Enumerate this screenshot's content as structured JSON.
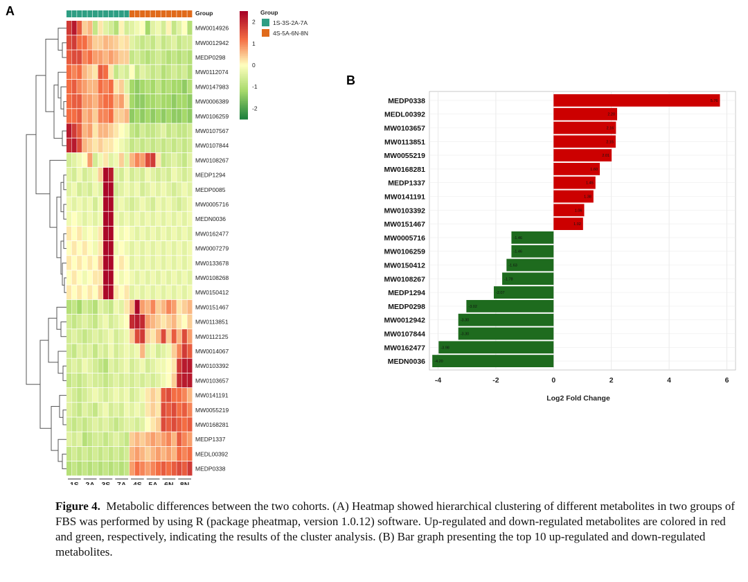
{
  "panel_a_label": "A",
  "panel_b_label": "B",
  "caption": {
    "label": "Figure 4.",
    "text": "Metabolic differences between the two cohorts. (A) Heatmap showed hierarchical clustering of different metabolites in two groups of FBS was performed by using R (package pheatmap, version 1.0.12) software. Up-regulated and down-regulated metabolites are colored in red and green, respectively, indicating the results of the cluster analysis. (B) Bar graph presenting the top 10 up-regulated and down-regulated metabolites."
  },
  "chart_data": [
    {
      "type": "heatmap",
      "annotation_row_label": "Group",
      "legend": {
        "title": "Group",
        "entries": [
          {
            "label": "1S-3S-2A-7A",
            "color": "#2e9e83"
          },
          {
            "label": "4S-5A-6N-8N",
            "color": "#e06a1b"
          }
        ]
      },
      "colorbar": {
        "ticks": [
          2,
          1,
          0,
          -1,
          -2
        ],
        "high_color": "#a50026",
        "mid_color": "#ffffbf",
        "low_color": "#1a7f3c"
      },
      "groups": [
        "1S",
        "2A",
        "3S",
        "7A",
        "4S",
        "5A",
        "6N",
        "8N"
      ],
      "columns_per_group": 3,
      "group_membership": [
        "1S-3S-2A-7A",
        "1S-3S-2A-7A",
        "1S-3S-2A-7A",
        "1S-3S-2A-7A",
        "4S-5A-6N-8N",
        "4S-5A-6N-8N",
        "4S-5A-6N-8N",
        "4S-5A-6N-8N"
      ],
      "rows": [
        {
          "name": "MW0014926",
          "values": [
            1.8,
            2.2,
            1.4,
            0.4,
            0.6,
            -0.8,
            0.2,
            -0.4,
            -0.6,
            -1.0,
            0.1,
            -0.6,
            -0.4,
            -0.2,
            0.0,
            -1.2,
            -0.4,
            -0.2,
            -0.6,
            0.1,
            -0.8,
            -0.4,
            0.0,
            -1.0
          ]
        },
        {
          "name": "MW0012942",
          "values": [
            1.6,
            1.8,
            1.2,
            1.2,
            0.8,
            0.4,
            0.4,
            0.6,
            0.5,
            0.4,
            0.2,
            0.3,
            -0.4,
            -0.6,
            -0.8,
            -0.6,
            -0.8,
            -0.4,
            -0.8,
            -0.6,
            -0.4,
            -0.8,
            -0.6,
            -0.6
          ]
        },
        {
          "name": "MEDP0298",
          "values": [
            1.4,
            1.6,
            1.6,
            1.0,
            1.2,
            0.8,
            0.8,
            0.6,
            0.8,
            0.6,
            0.4,
            0.4,
            -0.8,
            -0.6,
            -0.8,
            -1.0,
            -0.8,
            -0.6,
            -0.8,
            -1.0,
            -0.8,
            -1.0,
            -0.8,
            -1.0
          ]
        },
        {
          "name": "MW0112074",
          "values": [
            1.2,
            1.0,
            1.2,
            0.6,
            0.4,
            0.2,
            1.4,
            1.2,
            0.2,
            -0.8,
            -0.4,
            -0.6,
            0.0,
            -0.8,
            -0.4,
            -0.6,
            -0.8,
            -0.6,
            -1.0,
            -0.8,
            -0.6,
            -0.8,
            -0.6,
            -1.0
          ]
        },
        {
          "name": "MW0147983",
          "values": [
            1.2,
            1.4,
            1.0,
            0.8,
            0.6,
            0.6,
            1.2,
            1.0,
            1.2,
            0.2,
            0.4,
            -0.4,
            -1.2,
            -1.4,
            -1.2,
            -1.0,
            -1.2,
            -0.8,
            -1.2,
            -1.0,
            -1.2,
            -1.2,
            -1.4,
            -1.0
          ]
        },
        {
          "name": "MW0006389",
          "values": [
            1.2,
            1.4,
            1.4,
            0.8,
            0.8,
            0.6,
            1.0,
            1.2,
            1.2,
            0.6,
            0.8,
            0.2,
            -1.2,
            -1.4,
            -1.4,
            -1.2,
            -1.2,
            -1.0,
            -1.2,
            -1.2,
            -1.4,
            -1.2,
            -1.2,
            -1.4
          ]
        },
        {
          "name": "MW0106259",
          "values": [
            1.2,
            1.2,
            1.4,
            0.6,
            0.8,
            0.4,
            1.0,
            1.0,
            1.2,
            0.4,
            0.4,
            0.6,
            -1.4,
            -1.2,
            -1.4,
            -1.2,
            -1.4,
            -1.2,
            -1.4,
            -1.2,
            -1.4,
            -1.4,
            -1.2,
            -1.4
          ]
        },
        {
          "name": "MW0107567",
          "values": [
            2.2,
            1.8,
            1.4,
            0.6,
            0.8,
            0.2,
            0.6,
            0.6,
            0.4,
            0.2,
            0.0,
            -0.2,
            -0.8,
            -1.0,
            -0.6,
            -0.8,
            -0.8,
            -0.6,
            -0.4,
            -0.8,
            -0.6,
            -0.8,
            -0.8,
            -0.6
          ]
        },
        {
          "name": "MW0107844",
          "values": [
            2.0,
            2.2,
            1.6,
            0.6,
            0.4,
            0.2,
            0.4,
            0.2,
            0.2,
            0.0,
            -0.2,
            -0.4,
            -0.8,
            -0.6,
            -0.8,
            -0.6,
            -0.8,
            -0.6,
            -0.8,
            -0.6,
            -0.8,
            -0.6,
            -0.8,
            -0.6
          ]
        },
        {
          "name": "MW0108267",
          "values": [
            -0.6,
            -0.4,
            -0.2,
            0.0,
            0.8,
            -0.6,
            -0.2,
            0.2,
            -0.4,
            -0.2,
            0.4,
            -0.4,
            0.6,
            1.0,
            0.8,
            1.6,
            1.8,
            0.2,
            -0.8,
            -0.6,
            -0.4,
            -0.6,
            -0.8,
            -0.4
          ]
        },
        {
          "name": "MEDP1294",
          "values": [
            -0.4,
            -0.6,
            -0.2,
            -0.6,
            -0.4,
            -0.2,
            0.4,
            2.4,
            2.2,
            -0.4,
            -0.6,
            -0.2,
            -0.6,
            -0.4,
            -0.6,
            -0.2,
            -0.4,
            -0.6,
            -0.4,
            -0.6,
            -0.2,
            -0.4,
            -0.6,
            -0.4
          ]
        },
        {
          "name": "MEDP0085",
          "values": [
            -0.4,
            -0.2,
            -0.6,
            -0.4,
            -0.6,
            -0.2,
            -0.4,
            2.4,
            2.4,
            -0.6,
            -0.4,
            -0.2,
            -0.4,
            -0.2,
            -0.6,
            -0.4,
            -0.2,
            -0.4,
            -0.2,
            -0.4,
            -0.6,
            -0.4,
            -0.2,
            -0.4
          ]
        },
        {
          "name": "MW0005716",
          "values": [
            -0.2,
            -0.4,
            -0.2,
            -0.4,
            -0.2,
            -0.6,
            -0.2,
            2.4,
            2.4,
            -0.4,
            -0.2,
            -0.4,
            -0.6,
            -0.4,
            -0.2,
            -0.4,
            -0.6,
            -0.2,
            -0.4,
            -0.2,
            -0.4,
            -0.6,
            -0.4,
            -0.2
          ]
        },
        {
          "name": "MEDN0036",
          "values": [
            -0.2,
            0.0,
            -0.2,
            -0.4,
            -0.2,
            -0.4,
            -0.2,
            2.4,
            2.4,
            -0.2,
            -0.4,
            -0.2,
            -0.4,
            -0.2,
            -0.4,
            -0.2,
            -0.4,
            -0.2,
            -0.4,
            -0.2,
            -0.4,
            -0.2,
            -0.4,
            -0.2
          ]
        },
        {
          "name": "MW0162477",
          "values": [
            0.2,
            0.0,
            0.2,
            -0.2,
            0.0,
            -0.2,
            0.2,
            2.4,
            2.4,
            0.0,
            -0.2,
            0.0,
            -0.2,
            -0.4,
            -0.2,
            -0.4,
            -0.2,
            -0.4,
            -0.2,
            -0.4,
            -0.2,
            -0.4,
            -0.2,
            -0.4
          ]
        },
        {
          "name": "MW0007279",
          "values": [
            0.0,
            0.2,
            0.0,
            0.2,
            0.0,
            -0.2,
            0.2,
            2.4,
            2.4,
            -0.2,
            0.0,
            -0.2,
            -0.4,
            -0.2,
            -0.4,
            -0.2,
            -0.4,
            -0.2,
            -0.4,
            -0.2,
            -0.4,
            -0.2,
            -0.4,
            -0.2
          ]
        },
        {
          "name": "MW0133678",
          "values": [
            0.2,
            0.0,
            0.2,
            0.0,
            0.2,
            0.0,
            0.4,
            2.4,
            2.4,
            0.0,
            0.2,
            0.0,
            -0.4,
            -0.2,
            -0.4,
            -0.2,
            -0.4,
            -0.2,
            -0.4,
            -0.2,
            -0.4,
            -0.2,
            -0.4,
            -0.2
          ]
        },
        {
          "name": "MW0108268",
          "values": [
            0.0,
            0.2,
            0.0,
            -0.2,
            0.0,
            0.2,
            0.2,
            2.4,
            2.4,
            0.0,
            -0.2,
            0.0,
            -0.2,
            -0.4,
            -0.2,
            -0.4,
            -0.2,
            -0.4,
            -0.2,
            -0.4,
            -0.2,
            -0.4,
            -0.2,
            -0.4
          ]
        },
        {
          "name": "MW0150412",
          "values": [
            0.2,
            0.0,
            0.2,
            0.0,
            0.2,
            0.0,
            0.4,
            2.4,
            2.4,
            0.2,
            0.0,
            0.2,
            -0.4,
            -0.2,
            -0.4,
            -0.2,
            -0.4,
            -0.2,
            -0.4,
            -0.2,
            -0.4,
            -0.2,
            -0.4,
            -0.2
          ]
        },
        {
          "name": "MW0151467",
          "values": [
            -1.0,
            -0.8,
            -1.2,
            -0.6,
            -0.8,
            -1.0,
            -0.4,
            -0.6,
            -0.8,
            -0.2,
            -0.4,
            0.2,
            0.6,
            2.4,
            0.8,
            0.6,
            1.0,
            0.4,
            0.6,
            1.0,
            0.8,
            0.2,
            0.4,
            0.6
          ]
        },
        {
          "name": "MW0113851",
          "values": [
            -0.6,
            -0.8,
            -0.6,
            -0.4,
            -0.6,
            -0.8,
            -0.4,
            -0.2,
            -0.6,
            -0.4,
            -0.2,
            0.0,
            2.0,
            2.2,
            2.0,
            0.8,
            0.6,
            0.4,
            0.2,
            0.4,
            0.6,
            0.2,
            0.0,
            0.4
          ]
        },
        {
          "name": "MW0112125",
          "values": [
            -0.6,
            -0.4,
            -0.6,
            -0.8,
            -0.6,
            -0.4,
            -0.6,
            -0.4,
            -0.2,
            -0.6,
            -0.4,
            -0.2,
            0.4,
            1.6,
            1.8,
            0.4,
            0.2,
            0.6,
            1.6,
            0.4,
            1.4,
            0.6,
            1.6,
            0.8
          ]
        },
        {
          "name": "MW0014067",
          "values": [
            -0.6,
            -0.8,
            -0.4,
            -0.6,
            -0.4,
            -0.8,
            -0.4,
            -0.6,
            -0.2,
            -0.6,
            -0.4,
            -0.2,
            -0.4,
            -0.2,
            0.6,
            -0.4,
            -0.2,
            -0.6,
            -0.4,
            -0.2,
            0.4,
            1.0,
            1.8,
            1.4
          ]
        },
        {
          "name": "MW0103392",
          "values": [
            -0.6,
            -0.4,
            -0.6,
            -0.2,
            -0.4,
            -0.6,
            -0.8,
            -1.0,
            -0.4,
            -0.6,
            -0.4,
            -0.2,
            -0.6,
            -0.4,
            -0.2,
            -0.6,
            -0.4,
            -0.2,
            -0.2,
            0.0,
            0.2,
            1.8,
            2.2,
            2.2
          ]
        },
        {
          "name": "MW0103657",
          "values": [
            -0.8,
            -0.6,
            -0.8,
            -0.6,
            -0.4,
            -0.6,
            -0.6,
            -0.8,
            -0.6,
            -0.4,
            -0.6,
            -0.4,
            -0.6,
            -0.4,
            -0.6,
            -0.4,
            -0.6,
            -0.4,
            -0.2,
            0.0,
            0.4,
            2.0,
            2.2,
            2.2
          ]
        },
        {
          "name": "MW0141191",
          "values": [
            -0.4,
            -0.6,
            -0.8,
            -0.6,
            -0.4,
            -0.2,
            -0.4,
            -0.6,
            -0.4,
            -0.2,
            -0.4,
            -0.2,
            -0.6,
            -0.4,
            -0.2,
            0.2,
            0.4,
            0.2,
            1.4,
            1.6,
            1.2,
            1.2,
            1.0,
            0.6
          ]
        },
        {
          "name": "MW0055219",
          "values": [
            -0.4,
            -0.6,
            -0.8,
            -0.4,
            -0.6,
            -0.8,
            -0.4,
            -0.2,
            -0.6,
            -0.4,
            -0.6,
            -0.2,
            -0.4,
            -0.2,
            -0.4,
            0.2,
            0.4,
            0.2,
            1.6,
            1.4,
            1.6,
            1.2,
            1.4,
            1.0
          ]
        },
        {
          "name": "MW0168281",
          "values": [
            -0.6,
            -0.8,
            -0.6,
            -0.8,
            -0.6,
            -0.4,
            -0.6,
            -0.4,
            -0.6,
            -0.8,
            -0.6,
            -0.4,
            -0.4,
            -0.6,
            -0.4,
            0.0,
            0.2,
            0.4,
            1.6,
            1.4,
            1.6,
            1.4,
            1.2,
            1.4
          ]
        },
        {
          "name": "MEDP1337",
          "values": [
            -0.4,
            -0.6,
            -0.4,
            -1.0,
            -0.8,
            -0.6,
            -0.6,
            -0.8,
            -0.6,
            -0.4,
            -0.6,
            -0.8,
            0.4,
            0.6,
            0.4,
            0.6,
            0.8,
            0.6,
            0.8,
            1.0,
            0.6,
            1.4,
            1.0,
            0.8
          ]
        },
        {
          "name": "MEDL00392",
          "values": [
            -0.8,
            -0.6,
            -0.8,
            -0.6,
            -0.8,
            -0.6,
            -0.8,
            -0.6,
            -0.8,
            -0.6,
            -0.8,
            -0.6,
            0.6,
            0.8,
            0.6,
            0.4,
            0.6,
            0.8,
            0.6,
            0.8,
            0.6,
            1.2,
            1.0,
            1.2
          ]
        },
        {
          "name": "MEDP0338",
          "values": [
            -1.0,
            -0.8,
            -1.0,
            -0.8,
            -1.0,
            -0.8,
            -1.0,
            -0.8,
            -1.0,
            -0.8,
            -1.0,
            -0.8,
            0.8,
            1.2,
            1.0,
            0.8,
            1.0,
            1.2,
            1.4,
            1.2,
            1.4,
            1.6,
            1.4,
            1.8
          ]
        }
      ]
    },
    {
      "type": "bar",
      "orientation": "horizontal",
      "xlabel": "Log2 Fold Change",
      "xlim": [
        -4.3,
        6.3
      ],
      "xticks": [
        -4,
        -2,
        0,
        2,
        4,
        6
      ],
      "grid": true,
      "colors": {
        "up": "#cc0000",
        "down": "#1e6b1e"
      },
      "bars": [
        {
          "name": "MEDP0338",
          "value": 5.76,
          "label": "5.76"
        },
        {
          "name": "MEDL00392",
          "value": 2.2,
          "label": "2.20"
        },
        {
          "name": "MW0103657",
          "value": 2.16,
          "label": "2.16"
        },
        {
          "name": "MW0113851",
          "value": 2.15,
          "label": "2.15"
        },
        {
          "name": "MW0055219",
          "value": 2.01,
          "label": "2.01"
        },
        {
          "name": "MW0168281",
          "value": 1.6,
          "label": "1.60"
        },
        {
          "name": "MEDP1337",
          "value": 1.45,
          "label": "1.45"
        },
        {
          "name": "MW0141191",
          "value": 1.38,
          "label": "1.38"
        },
        {
          "name": "MW0103392",
          "value": 1.06,
          "label": "1.06"
        },
        {
          "name": "MW0151467",
          "value": 1.02,
          "label": "1.02"
        },
        {
          "name": "MW0005716",
          "value": -1.46,
          "label": "-1.46"
        },
        {
          "name": "MW0106259",
          "value": -1.46,
          "label": "-1.46"
        },
        {
          "name": "MW0150412",
          "value": -1.63,
          "label": "-1.63"
        },
        {
          "name": "MW0108267",
          "value": -1.78,
          "label": "-1.78"
        },
        {
          "name": "MEDP1294",
          "value": -2.07,
          "label": "-2.07"
        },
        {
          "name": "MEDP0298",
          "value": -3.02,
          "label": "-3.02"
        },
        {
          "name": "MW0012942",
          "value": -3.3,
          "label": "-3.30"
        },
        {
          "name": "MW0107844",
          "value": -3.3,
          "label": "-3.30"
        },
        {
          "name": "MW0162477",
          "value": -3.98,
          "label": "-3.98"
        },
        {
          "name": "MEDN0036",
          "value": -4.2,
          "label": "-4.20"
        }
      ]
    }
  ]
}
